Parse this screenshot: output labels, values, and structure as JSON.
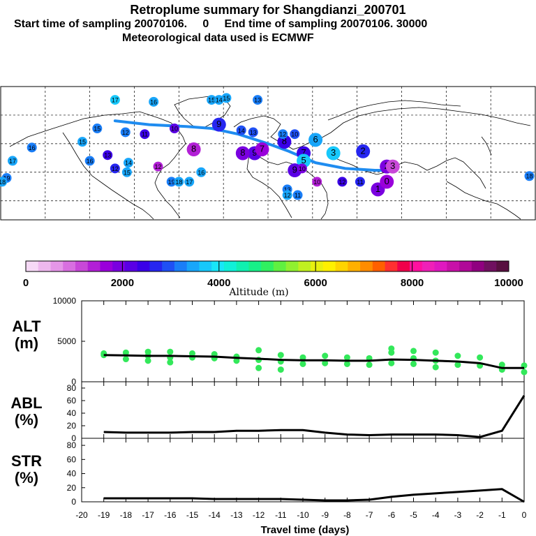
{
  "header": {
    "title": "Retroplume summary for Shangdianzi_200701",
    "line2": "Start time of sampling 20070106.     0     End time of sampling 20070106. 30000",
    "line3": "Meteorological data used is ECMWF"
  },
  "colorbar": {
    "label": "Altitude (m)",
    "ticks": [
      "0",
      "2000",
      "4000",
      "6000",
      "8000",
      "10000"
    ],
    "colors": [
      "#f6d9f6",
      "#eeb8ee",
      "#e596e8",
      "#d86fe0",
      "#c848d8",
      "#b21fd6",
      "#9a00db",
      "#7a00e0",
      "#5a00e5",
      "#3a00e8",
      "#2626f0",
      "#1f50f5",
      "#1a7ef8",
      "#18a6fa",
      "#17c8fb",
      "#18e6f8",
      "#10f0d8",
      "#10f0b0",
      "#18f088",
      "#30f060",
      "#60f040",
      "#90f030",
      "#c0f020",
      "#e8f010",
      "#fff000",
      "#ffd400",
      "#ffb000",
      "#ff8c00",
      "#ff6000",
      "#ff3030",
      "#f0004a",
      "#ff10a0",
      "#f020b8",
      "#e018c0",
      "#c810a8",
      "#b00898",
      "#900080",
      "#701060",
      "#581040"
    ]
  },
  "map": {
    "markers": [
      {
        "label": "17",
        "lon": -103,
        "lat": 83,
        "alt": 3600
      },
      {
        "label": "16",
        "lon": -77,
        "lat": 82,
        "alt": 3500
      },
      {
        "label": "15",
        "lon": -38,
        "lat": 83,
        "alt": 3500
      },
      {
        "label": "14",
        "lon": -33,
        "lat": 83,
        "alt": 3400
      },
      {
        "label": "15",
        "lon": -28,
        "lat": 84,
        "alt": 3400
      },
      {
        "label": "13",
        "lon": -7,
        "lat": 83,
        "alt": 3300
      },
      {
        "label": "15",
        "lon": -115,
        "lat": 68,
        "alt": 3200
      },
      {
        "label": "12",
        "lon": -96,
        "lat": 66,
        "alt": 3100
      },
      {
        "label": "11",
        "lon": -83,
        "lat": 65,
        "alt": 2400
      },
      {
        "label": "10",
        "lon": -63,
        "lat": 68,
        "alt": 2200
      },
      {
        "label": "9",
        "lon": -33,
        "lat": 70,
        "alt": 2800
      },
      {
        "label": "14",
        "lon": -18,
        "lat": 67,
        "alt": 3000
      },
      {
        "label": "13",
        "lon": -10,
        "lat": 66,
        "alt": 3000
      },
      {
        "label": "15",
        "lon": -125,
        "lat": 61,
        "alt": 3400
      },
      {
        "label": "16",
        "lon": -159,
        "lat": 58,
        "alt": 3300
      },
      {
        "label": "13",
        "lon": -108,
        "lat": 54,
        "alt": 2400
      },
      {
        "label": "14",
        "lon": -94,
        "lat": 50,
        "alt": 3400
      },
      {
        "label": "15",
        "lon": -95,
        "lat": 45,
        "alt": 3400
      },
      {
        "label": "12",
        "lon": -103,
        "lat": 47,
        "alt": 2600
      },
      {
        "label": "12",
        "lon": -74,
        "lat": 48,
        "alt": 1500
      },
      {
        "label": "16",
        "lon": -120,
        "lat": 51,
        "alt": 3300
      },
      {
        "label": "19",
        "lon": -176,
        "lat": 42,
        "alt": 3300
      },
      {
        "label": "18",
        "lon": -179,
        "lat": 40,
        "alt": 3400
      },
      {
        "label": "17",
        "lon": -172,
        "lat": 51,
        "alt": 3500
      },
      {
        "label": "19",
        "lon": -65,
        "lat": 40,
        "alt": 3300
      },
      {
        "label": "18",
        "lon": -60,
        "lat": 40,
        "alt": 3400
      },
      {
        "label": "17",
        "lon": -53,
        "lat": 40,
        "alt": 3400
      },
      {
        "label": "16",
        "lon": -45,
        "lat": 45,
        "alt": 3400
      },
      {
        "label": "8",
        "lon": -50,
        "lat": 57,
        "alt": 1400
      },
      {
        "label": "9",
        "lon": -9,
        "lat": 55,
        "alt": 2200
      },
      {
        "label": "8",
        "lon": -17,
        "lat": 55,
        "alt": 1800
      },
      {
        "label": "7",
        "lon": -4,
        "lat": 57,
        "alt": 1600
      },
      {
        "label": "8",
        "lon": 11,
        "lat": 61,
        "alt": 2400
      },
      {
        "label": "7",
        "lon": 24,
        "lat": 55,
        "alt": 2400
      },
      {
        "label": "6",
        "lon": 32,
        "lat": 62,
        "alt": 3500
      },
      {
        "label": "5",
        "lon": 24,
        "lat": 51,
        "alt": 3800
      },
      {
        "label": "3",
        "lon": 44,
        "lat": 55,
        "alt": 3700
      },
      {
        "label": "2",
        "lon": 64,
        "lat": 56,
        "alt": 2700
      },
      {
        "label": "2",
        "lon": 80,
        "lat": 48,
        "alt": 1900
      },
      {
        "label": "3",
        "lon": 84,
        "lat": 48,
        "alt": 1200
      },
      {
        "label": "13",
        "lon": 13,
        "lat": 36,
        "alt": 3200
      },
      {
        "label": "12",
        "lon": 13,
        "lat": 33,
        "alt": 3500
      },
      {
        "label": "11",
        "lon": 20,
        "lat": 33,
        "alt": 3300
      },
      {
        "label": "9",
        "lon": 18,
        "lat": 46,
        "alt": 2200
      },
      {
        "label": "10",
        "lon": 23,
        "lat": 47,
        "alt": 2000
      },
      {
        "label": "10",
        "lon": 33,
        "lat": 40,
        "alt": 1500
      },
      {
        "label": "12",
        "lon": 50,
        "lat": 40,
        "alt": 2400
      },
      {
        "label": "11",
        "lon": 62,
        "lat": 40,
        "alt": 2600
      },
      {
        "label": "1",
        "lon": 74,
        "lat": 36,
        "alt": 1900
      },
      {
        "label": "0",
        "lon": 80,
        "lat": 40,
        "alt": 1700
      },
      {
        "label": "10",
        "lon": 18,
        "lat": 65,
        "alt": 3000
      },
      {
        "label": "12",
        "lon": 10,
        "lat": 65,
        "alt": 3100
      },
      {
        "label": "18",
        "lon": 176,
        "lat": 43,
        "alt": 3200
      }
    ],
    "tracks": [
      {
        "lon": [
          -103,
          -80,
          -55,
          -38,
          -20,
          0,
          14,
          32,
          52,
          72,
          84
        ],
        "lat": [
          72,
          70,
          69,
          68,
          65,
          60,
          56,
          50,
          47,
          46,
          46
        ],
        "alt": 3000
      }
    ]
  },
  "chart_data": [
    {
      "type": "line",
      "title": "ALT (m)",
      "panel_label_1": "ALT",
      "panel_label_2": "(m)",
      "ylim": [
        0,
        10000
      ],
      "yticks": [
        "10000",
        "5000",
        "0"
      ],
      "x": [
        -19,
        -18,
        -17,
        -16,
        -15,
        -14,
        -13,
        -12,
        -11,
        -10,
        -9,
        -8,
        -7,
        -6,
        -5,
        -4,
        -3,
        -2,
        -1,
        0
      ],
      "values": [
        3300,
        3250,
        3200,
        3200,
        3150,
        3100,
        2950,
        2850,
        2700,
        2650,
        2650,
        2600,
        2600,
        2750,
        2700,
        2600,
        2500,
        2300,
        1700,
        1700
      ]
    },
    {
      "type": "line",
      "title": "ABL (%)",
      "panel_label_1": "ABL",
      "panel_label_2": "(%)",
      "ylim": [
        0,
        90
      ],
      "yticks": [
        "80",
        "60",
        "40",
        "20",
        "0"
      ],
      "x": [
        -19,
        -18,
        -17,
        -16,
        -15,
        -14,
        -13,
        -12,
        -11,
        -10,
        -9,
        -8,
        -7,
        -6,
        -5,
        -4,
        -3,
        -2,
        -1,
        0
      ],
      "values": [
        10,
        9,
        9,
        9,
        10,
        10,
        12,
        12,
        13,
        13,
        9,
        6,
        5,
        6,
        6,
        6,
        5,
        2,
        12,
        68
      ]
    },
    {
      "type": "line",
      "title": "STR (%)",
      "panel_label_1": "STR",
      "panel_label_2": "(%)",
      "ylim": [
        0,
        90
      ],
      "yticks": [
        "80",
        "60",
        "40",
        "20",
        "0"
      ],
      "x": [
        -19,
        -18,
        -17,
        -16,
        -15,
        -14,
        -13,
        -12,
        -11,
        -10,
        -9,
        -8,
        -7,
        -6,
        -5,
        -4,
        -3,
        -2,
        -1,
        0
      ],
      "values": [
        5,
        5,
        5,
        5,
        5,
        4,
        4,
        4,
        4,
        3,
        2,
        2,
        3,
        7,
        10,
        12,
        14,
        16,
        18,
        0
      ],
      "xlabel": "Travel time (days)",
      "xticks": [
        "-20",
        "-19",
        "-18",
        "-17",
        "-16",
        "-15",
        "-14",
        "-13",
        "-12",
        "-11",
        "-10",
        "-9",
        "-8",
        "-7",
        "-6",
        "-5",
        "-4",
        "-3",
        "-2",
        "-1",
        "0"
      ]
    }
  ],
  "alt_scatter": {
    "x": [
      -19,
      -19,
      -18,
      -18,
      -17,
      -17,
      -17,
      -16,
      -16,
      -16,
      -15,
      -15,
      -14,
      -14,
      -13,
      -13,
      -12,
      -12,
      -12,
      -11,
      -11,
      -11,
      -10,
      -10,
      -9,
      -9,
      -8,
      -8,
      -7,
      -7,
      -6,
      -6,
      -6,
      -5,
      -5,
      -5,
      -4,
      -4,
      -4,
      -3,
      -3,
      -2,
      -2,
      -1,
      -1,
      0,
      0
    ],
    "y": [
      3500,
      3300,
      3600,
      2800,
      3700,
      3200,
      2600,
      3700,
      3000,
      2400,
      3500,
      3000,
      3400,
      2900,
      3100,
      2600,
      3900,
      2700,
      1700,
      3300,
      2500,
      1500,
      3000,
      2200,
      3200,
      2300,
      3000,
      2200,
      2900,
      2100,
      4100,
      3600,
      2300,
      3800,
      2900,
      2200,
      3600,
      2600,
      1800,
      3200,
      2100,
      3000,
      2000,
      2100,
      1500,
      2000,
      1200
    ]
  }
}
